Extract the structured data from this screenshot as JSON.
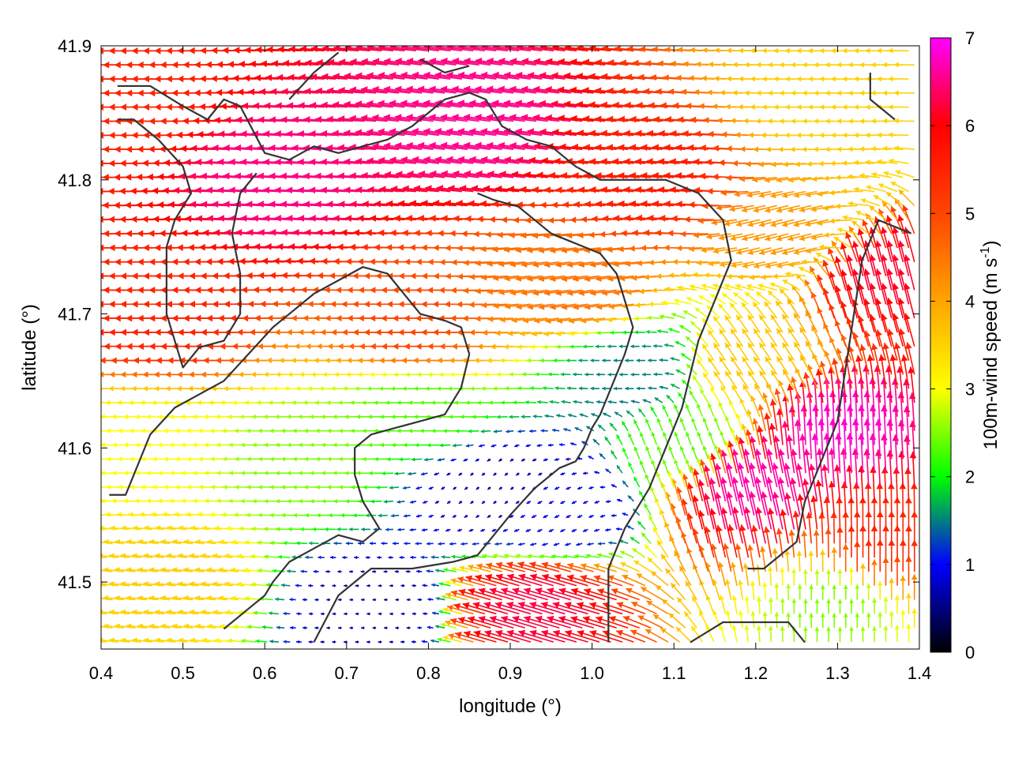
{
  "chart_data": {
    "type": "vector-field",
    "xlabel": "longitude (°)",
    "ylabel": "latitude (°)",
    "xlim": [
      0.4,
      1.4
    ],
    "ylim": [
      41.45,
      41.9
    ],
    "x_ticks": [
      "0.4",
      "0.5",
      "0.6",
      "0.7",
      "0.8",
      "0.9",
      "1.0",
      "1.1",
      "1.2",
      "1.3",
      "1.4"
    ],
    "y_ticks": [
      "41.5",
      "41.6",
      "41.7",
      "41.8",
      "41.9"
    ],
    "colorbar": {
      "label_main": "100m-wind speed (m s",
      "label_sup": "-1",
      "label_end": ")",
      "range": [
        0,
        7
      ],
      "ticks": [
        "0",
        "1",
        "2",
        "3",
        "4",
        "5",
        "6",
        "7"
      ],
      "palette": [
        "#000000",
        "#0000ff",
        "#00ff00",
        "#ffff00",
        "#ffa500",
        "#ff4500",
        "#ff0000",
        "#ff00ff"
      ]
    },
    "grid_step": {
      "lon": 0.014,
      "lat": 0.0105
    },
    "flow_regions": [
      {
        "lon": 0.65,
        "lat": 41.8,
        "u": -6.5,
        "v": 0.3
      },
      {
        "lon": 0.88,
        "lat": 41.84,
        "u": -6.5,
        "v": 0.8
      },
      {
        "lon": 0.45,
        "lat": 41.86,
        "u": -5.5,
        "v": 0.0
      },
      {
        "lon": 1.1,
        "lat": 41.8,
        "u": -5.6,
        "v": 0.4
      },
      {
        "lon": 1.3,
        "lat": 41.86,
        "u": -3.5,
        "v": 0.0
      },
      {
        "lon": 1.25,
        "lat": 41.76,
        "u": -4.0,
        "v": -1.0
      },
      {
        "lon": 0.5,
        "lat": 41.7,
        "u": -5.5,
        "v": 0.0
      },
      {
        "lon": 0.8,
        "lat": 41.69,
        "u": -5.0,
        "v": 0.0
      },
      {
        "lon": 1.0,
        "lat": 41.72,
        "u": -4.5,
        "v": -0.6
      },
      {
        "lon": 0.48,
        "lat": 41.6,
        "u": -3.0,
        "v": 0.0
      },
      {
        "lon": 0.65,
        "lat": 41.59,
        "u": -2.5,
        "v": 0.0
      },
      {
        "lon": 0.8,
        "lat": 41.63,
        "u": -2.3,
        "v": 0.0
      },
      {
        "lon": 0.88,
        "lat": 41.57,
        "u": -0.5,
        "v": -0.4
      },
      {
        "lon": 0.96,
        "lat": 41.55,
        "u": -0.8,
        "v": -0.4
      },
      {
        "lon": 0.73,
        "lat": 41.48,
        "u": -0.6,
        "v": 0.0
      },
      {
        "lon": 0.5,
        "lat": 41.5,
        "u": -3.5,
        "v": 0.4
      },
      {
        "lon": 0.95,
        "lat": 41.48,
        "u": -6.0,
        "v": 1.8
      },
      {
        "lon": 1.12,
        "lat": 41.6,
        "u": -0.8,
        "v": 2.2
      },
      {
        "lon": 1.2,
        "lat": 41.56,
        "u": -1.5,
        "v": 6.5
      },
      {
        "lon": 1.3,
        "lat": 41.6,
        "u": -0.3,
        "v": 6.8
      },
      {
        "lon": 1.35,
        "lat": 41.52,
        "u": 0.0,
        "v": 5.5
      },
      {
        "lon": 1.36,
        "lat": 41.72,
        "u": -1.5,
        "v": 6.0
      },
      {
        "lon": 1.2,
        "lat": 41.66,
        "u": -2.0,
        "v": 3.0
      },
      {
        "lon": 1.3,
        "lat": 41.48,
        "u": 0.0,
        "v": 2.5
      },
      {
        "lon": 1.05,
        "lat": 41.66,
        "u": -1.5,
        "v": 0.0
      }
    ],
    "coastlines": [
      [
        [
          0.42,
          41.87
        ],
        [
          0.46,
          41.87
        ],
        [
          0.5,
          41.855
        ],
        [
          0.53,
          41.845
        ],
        [
          0.55,
          41.86
        ],
        [
          0.57,
          41.855
        ],
        [
          0.6,
          41.82
        ],
        [
          0.63,
          41.815
        ],
        [
          0.66,
          41.825
        ],
        [
          0.69,
          41.82
        ],
        [
          0.72,
          41.825
        ],
        [
          0.75,
          41.83
        ],
        [
          0.78,
          41.84
        ],
        [
          0.8,
          41.85
        ],
        [
          0.82,
          41.86
        ],
        [
          0.85,
          41.865
        ],
        [
          0.87,
          41.86
        ],
        [
          0.89,
          41.84
        ],
        [
          0.92,
          41.83
        ],
        [
          0.95,
          41.825
        ],
        [
          0.98,
          41.81
        ],
        [
          1.01,
          41.8
        ],
        [
          1.05,
          41.8
        ],
        [
          1.09,
          41.8
        ],
        [
          1.13,
          41.79
        ],
        [
          1.16,
          41.77
        ],
        [
          1.17,
          41.74
        ],
        [
          1.15,
          41.71
        ],
        [
          1.13,
          41.68
        ],
        [
          1.11,
          41.63
        ],
        [
          1.09,
          41.6
        ],
        [
          1.07,
          41.57
        ],
        [
          1.04,
          41.54
        ],
        [
          1.02,
          41.51
        ],
        [
          1.02,
          41.455
        ]
      ],
      [
        [
          0.42,
          41.845
        ],
        [
          0.44,
          41.845
        ],
        [
          0.47,
          41.83
        ],
        [
          0.5,
          41.81
        ],
        [
          0.51,
          41.79
        ],
        [
          0.49,
          41.77
        ],
        [
          0.48,
          41.75
        ],
        [
          0.48,
          41.7
        ],
        [
          0.5,
          41.66
        ],
        [
          0.52,
          41.675
        ],
        [
          0.55,
          41.68
        ],
        [
          0.57,
          41.7
        ],
        [
          0.57,
          41.73
        ],
        [
          0.56,
          41.76
        ],
        [
          0.57,
          41.79
        ],
        [
          0.59,
          41.805
        ]
      ],
      [
        [
          0.41,
          41.565
        ],
        [
          0.43,
          41.565
        ],
        [
          0.46,
          41.61
        ],
        [
          0.49,
          41.63
        ],
        [
          0.52,
          41.64
        ],
        [
          0.55,
          41.65
        ],
        [
          0.58,
          41.67
        ],
        [
          0.61,
          41.69
        ],
        [
          0.63,
          41.7
        ],
        [
          0.66,
          41.715
        ],
        [
          0.69,
          41.725
        ],
        [
          0.72,
          41.735
        ],
        [
          0.75,
          41.73
        ],
        [
          0.77,
          41.715
        ],
        [
          0.79,
          41.7
        ],
        [
          0.82,
          41.695
        ],
        [
          0.84,
          41.69
        ],
        [
          0.85,
          41.67
        ],
        [
          0.84,
          41.645
        ],
        [
          0.82,
          41.625
        ],
        [
          0.79,
          41.62
        ],
        [
          0.76,
          41.615
        ],
        [
          0.73,
          41.61
        ],
        [
          0.71,
          41.6
        ],
        [
          0.71,
          41.58
        ],
        [
          0.72,
          41.56
        ],
        [
          0.74,
          41.54
        ],
        [
          0.72,
          41.53
        ],
        [
          0.69,
          41.535
        ],
        [
          0.66,
          41.525
        ],
        [
          0.63,
          41.515
        ],
        [
          0.61,
          41.5
        ],
        [
          0.6,
          41.49
        ],
        [
          0.59,
          41.485
        ],
        [
          0.57,
          41.475
        ],
        [
          0.55,
          41.465
        ]
      ],
      [
        [
          0.66,
          41.455
        ],
        [
          0.69,
          41.49
        ],
        [
          0.73,
          41.51
        ],
        [
          0.78,
          41.51
        ],
        [
          0.83,
          41.515
        ],
        [
          0.86,
          41.52
        ],
        [
          0.88,
          41.535
        ],
        [
          0.9,
          41.55
        ],
        [
          0.93,
          41.57
        ],
        [
          0.96,
          41.585
        ],
        [
          0.98,
          41.59
        ],
        [
          0.99,
          41.6
        ],
        [
          1.0,
          41.615
        ],
        [
          1.01,
          41.625
        ],
        [
          1.02,
          41.64
        ],
        [
          1.03,
          41.655
        ],
        [
          1.04,
          41.67
        ],
        [
          1.05,
          41.69
        ],
        [
          1.04,
          41.71
        ],
        [
          1.03,
          41.73
        ],
        [
          1.01,
          41.745
        ],
        [
          0.99,
          41.75
        ],
        [
          0.97,
          41.755
        ],
        [
          0.95,
          41.76
        ],
        [
          0.93,
          41.77
        ],
        [
          0.91,
          41.78
        ],
        [
          0.88,
          41.785
        ],
        [
          0.86,
          41.79
        ]
      ],
      [
        [
          1.33,
          41.74
        ],
        [
          1.35,
          41.77
        ],
        [
          1.37,
          41.765
        ],
        [
          1.39,
          41.76
        ]
      ],
      [
        [
          1.33,
          41.74
        ],
        [
          1.32,
          41.7
        ],
        [
          1.31,
          41.66
        ],
        [
          1.3,
          41.62
        ],
        [
          1.28,
          41.59
        ],
        [
          1.26,
          41.56
        ],
        [
          1.25,
          41.53
        ],
        [
          1.23,
          41.52
        ],
        [
          1.21,
          41.51
        ],
        [
          1.19,
          41.51
        ]
      ],
      [
        [
          1.12,
          41.455
        ],
        [
          1.16,
          41.47
        ],
        [
          1.2,
          41.47
        ],
        [
          1.24,
          41.47
        ],
        [
          1.26,
          41.455
        ]
      ],
      [
        [
          0.63,
          41.86
        ],
        [
          0.66,
          41.88
        ],
        [
          0.69,
          41.895
        ]
      ],
      [
        [
          0.79,
          41.89
        ],
        [
          0.82,
          41.88
        ],
        [
          0.85,
          41.885
        ]
      ],
      [
        [
          1.34,
          41.88
        ],
        [
          1.34,
          41.86
        ],
        [
          1.37,
          41.845
        ]
      ]
    ]
  }
}
